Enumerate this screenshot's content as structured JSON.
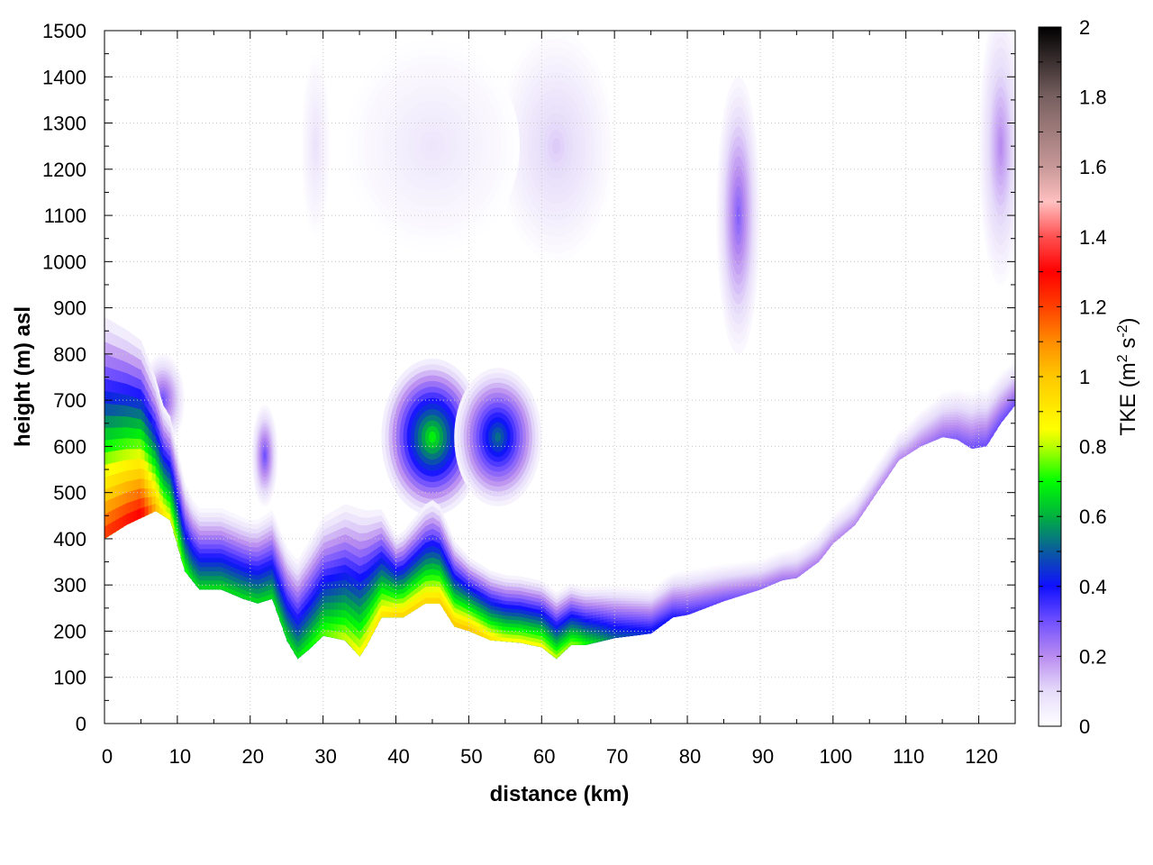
{
  "chart_data": {
    "type": "heatmap",
    "xlabel": "distance (km)",
    "ylabel": "height (m) asl",
    "colorbar_label": "TKE (m",
    "colorbar_label_sup1": "2",
    "colorbar_label_mid": " s",
    "colorbar_label_sup2": "-2",
    "colorbar_label_end": ")",
    "xlim": [
      0,
      125
    ],
    "ylim": [
      0,
      1500
    ],
    "clim": [
      0,
      2
    ],
    "xticks": [
      "0",
      "10",
      "20",
      "30",
      "40",
      "50",
      "60",
      "70",
      "80",
      "90",
      "100",
      "110",
      "120"
    ],
    "yticks": [
      "0",
      "100",
      "200",
      "300",
      "400",
      "500",
      "600",
      "700",
      "800",
      "900",
      "1000",
      "1100",
      "1200",
      "1300",
      "1400",
      "1500"
    ],
    "cticks": [
      "0",
      "0.2",
      "0.4",
      "0.6",
      "0.8",
      "1",
      "1.2",
      "1.4",
      "1.6",
      "1.8",
      "2"
    ],
    "grid": true,
    "colormap": [
      [
        0,
        "#ffffff"
      ],
      [
        0.1,
        "#e6dcfa"
      ],
      [
        0.2,
        "#b98cf0"
      ],
      [
        0.3,
        "#7050ff"
      ],
      [
        0.4,
        "#1010ff"
      ],
      [
        0.5,
        "#0a5aa0"
      ],
      [
        0.6,
        "#00b040"
      ],
      [
        0.7,
        "#00ff00"
      ],
      [
        0.8,
        "#b8ff00"
      ],
      [
        0.85,
        "#ffff00"
      ],
      [
        1.0,
        "#ffc800"
      ],
      [
        1.1,
        "#ff8c00"
      ],
      [
        1.2,
        "#ff4000"
      ],
      [
        1.3,
        "#ff0000"
      ],
      [
        1.4,
        "#ff5050"
      ],
      [
        1.5,
        "#ffc0c0"
      ],
      [
        1.6,
        "#c89898"
      ],
      [
        1.8,
        "#786060"
      ],
      [
        2.0,
        "#000000"
      ]
    ],
    "surface_profile": {
      "x": [
        0,
        3,
        7,
        9,
        11,
        13,
        16,
        19,
        21,
        23,
        25,
        26.5,
        28,
        30,
        33,
        35,
        36,
        38,
        41,
        44,
        46,
        48,
        50,
        53,
        57,
        60,
        62,
        64,
        66,
        70,
        75,
        78,
        80,
        85,
        90,
        93,
        95,
        98,
        100,
        103,
        106,
        109,
        112,
        115,
        117,
        119,
        121,
        123,
        125
      ],
      "height": [
        400,
        430,
        460,
        440,
        330,
        290,
        290,
        270,
        260,
        270,
        180,
        140,
        160,
        190,
        180,
        145,
        170,
        230,
        230,
        260,
        260,
        210,
        200,
        180,
        175,
        165,
        140,
        170,
        170,
        185,
        195,
        230,
        235,
        265,
        290,
        310,
        315,
        350,
        390,
        430,
        500,
        570,
        600,
        620,
        615,
        595,
        600,
        650,
        690
      ]
    },
    "near_surface_tke": {
      "x": [
        0,
        5,
        8,
        12,
        20,
        26,
        35,
        40,
        45,
        50,
        55,
        60,
        62,
        65,
        70,
        75,
        80,
        90,
        100,
        110,
        120,
        125
      ],
      "max": [
        1.2,
        1.3,
        0.9,
        0.65,
        0.65,
        0.65,
        0.85,
        0.95,
        0.95,
        1.0,
        0.85,
        0.85,
        0.8,
        0.75,
        0.5,
        0.42,
        0.35,
        0.25,
        0.2,
        0.2,
        0.3,
        0.3
      ],
      "depth": [
        300,
        240,
        150,
        110,
        110,
        130,
        200,
        110,
        140,
        100,
        90,
        90,
        90,
        80,
        70,
        60,
        60,
        40,
        40,
        40,
        80,
        60
      ]
    },
    "elevated_features": [
      {
        "x": 45,
        "y": 620,
        "rx": 7,
        "ry": 170,
        "peak": 0.68
      },
      {
        "x": 54,
        "y": 620,
        "rx": 6,
        "ry": 150,
        "peak": 0.52
      },
      {
        "x": 22,
        "y": 580,
        "rx": 1.8,
        "ry": 110,
        "peak": 0.3
      },
      {
        "x": 87,
        "y": 1100,
        "rx": 3,
        "ry": 300,
        "peak": 0.27
      },
      {
        "x": 62,
        "y": 1250,
        "rx": 8,
        "ry": 250,
        "peak": 0.12
      },
      {
        "x": 45,
        "y": 1250,
        "rx": 12,
        "ry": 230,
        "peak": 0.07
      },
      {
        "x": 29,
        "y": 1250,
        "rx": 2,
        "ry": 200,
        "peak": 0.08
      },
      {
        "x": 123,
        "y": 1250,
        "rx": 3,
        "ry": 300,
        "peak": 0.2
      },
      {
        "x": 8,
        "y": 700,
        "rx": 3,
        "ry": 100,
        "peak": 0.3
      }
    ]
  }
}
